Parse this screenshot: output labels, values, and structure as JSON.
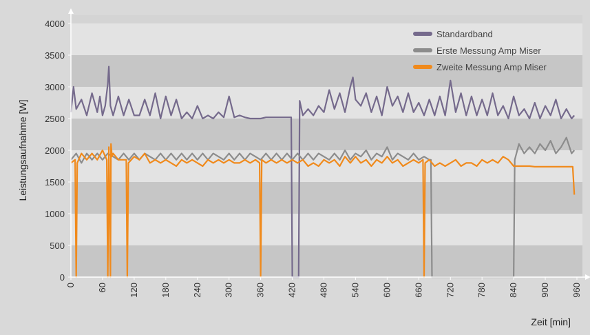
{
  "chart_data": {
    "type": "line",
    "title": "",
    "xlabel": "Zeit [min]",
    "ylabel": "Leistungsaufnahme [W]",
    "xlim": [
      0,
      960
    ],
    "ylim": [
      0,
      4000
    ],
    "x_ticks": [
      0,
      60,
      120,
      180,
      240,
      300,
      360,
      420,
      480,
      540,
      600,
      660,
      720,
      780,
      840,
      900,
      960
    ],
    "y_ticks": [
      0,
      500,
      1000,
      1500,
      2000,
      2500,
      3000,
      3500,
      4000
    ],
    "grid": "horizontal alternating bands",
    "legend_position": "top-right",
    "series": [
      {
        "name": "Standardband",
        "color": "#756a8c",
        "x": [
          0,
          5,
          10,
          20,
          30,
          40,
          50,
          55,
          60,
          65,
          70,
          72,
          75,
          80,
          90,
          100,
          110,
          120,
          130,
          140,
          150,
          160,
          170,
          180,
          190,
          200,
          210,
          220,
          230,
          240,
          250,
          260,
          270,
          280,
          290,
          300,
          310,
          320,
          330,
          340,
          350,
          360,
          370,
          380,
          390,
          400,
          410,
          418,
          420,
          432,
          434,
          440,
          450,
          460,
          470,
          480,
          490,
          500,
          510,
          520,
          530,
          535,
          540,
          550,
          560,
          570,
          580,
          590,
          600,
          610,
          620,
          630,
          640,
          650,
          660,
          670,
          680,
          690,
          700,
          710,
          720,
          730,
          740,
          750,
          760,
          770,
          780,
          790,
          800,
          810,
          820,
          830,
          840,
          850,
          860,
          870,
          880,
          890,
          900,
          910,
          920,
          930,
          940,
          950,
          955
        ],
        "values": [
          2600,
          3000,
          2650,
          2800,
          2550,
          2900,
          2600,
          2850,
          2550,
          2700,
          3050,
          3320,
          2700,
          2550,
          2850,
          2550,
          2800,
          2550,
          2550,
          2800,
          2550,
          2900,
          2500,
          2850,
          2550,
          2800,
          2500,
          2600,
          2500,
          2700,
          2500,
          2550,
          2500,
          2600,
          2520,
          2850,
          2520,
          2550,
          2520,
          2500,
          2500,
          2500,
          2520,
          2520,
          2520,
          2520,
          2520,
          2520,
          0,
          0,
          2780,
          2550,
          2650,
          2550,
          2700,
          2600,
          2950,
          2650,
          2900,
          2600,
          3000,
          3150,
          2800,
          2700,
          2900,
          2600,
          2850,
          2550,
          3000,
          2700,
          2850,
          2600,
          2900,
          2600,
          2750,
          2550,
          2800,
          2550,
          2850,
          2550,
          3100,
          2600,
          2900,
          2550,
          2850,
          2550,
          2800,
          2550,
          2900,
          2550,
          2700,
          2500,
          2850,
          2550,
          2650,
          2500,
          2750,
          2500,
          2700,
          2550,
          2800,
          2500,
          2650,
          2500,
          2550
        ]
      },
      {
        "name": "Erste Messung Amp Miser",
        "color": "#8c8c8c",
        "x": [
          0,
          10,
          20,
          30,
          40,
          50,
          60,
          70,
          80,
          90,
          100,
          110,
          120,
          130,
          140,
          150,
          160,
          170,
          180,
          190,
          200,
          210,
          220,
          230,
          240,
          250,
          260,
          270,
          280,
          290,
          300,
          310,
          320,
          330,
          340,
          350,
          360,
          370,
          380,
          390,
          400,
          410,
          420,
          430,
          440,
          450,
          460,
          470,
          480,
          490,
          500,
          510,
          520,
          530,
          540,
          550,
          560,
          570,
          580,
          590,
          600,
          610,
          620,
          630,
          640,
          650,
          660,
          670,
          680,
          683,
          685,
          840,
          842,
          850,
          860,
          870,
          880,
          890,
          900,
          910,
          920,
          930,
          940,
          950,
          955
        ],
        "values": [
          1850,
          1950,
          1800,
          1950,
          1850,
          1950,
          1850,
          1950,
          1900,
          1850,
          1950,
          1850,
          1950,
          1850,
          1950,
          1900,
          1850,
          1950,
          1850,
          1950,
          1850,
          1950,
          1850,
          1950,
          1850,
          1950,
          1850,
          1950,
          1900,
          1850,
          1950,
          1850,
          1950,
          1850,
          1950,
          1900,
          1850,
          1950,
          1850,
          1950,
          1850,
          1950,
          1850,
          1950,
          1850,
          1950,
          1850,
          1950,
          1900,
          1850,
          1950,
          1850,
          2000,
          1850,
          1950,
          1900,
          2000,
          1850,
          1950,
          1900,
          2050,
          1850,
          1950,
          1900,
          1850,
          1950,
          1850,
          1900,
          1850,
          1850,
          0,
          0,
          1850,
          2100,
          1950,
          2050,
          1950,
          2100,
          2000,
          2150,
          1950,
          2050,
          2200,
          1950,
          2000
        ]
      },
      {
        "name": "Zweite Messung Amp Miser",
        "color": "#f08a1c",
        "x": [
          0,
          8,
          10,
          12,
          20,
          30,
          40,
          50,
          60,
          68,
          70,
          72,
          75,
          76,
          78,
          80,
          90,
          105,
          107,
          109,
          120,
          130,
          140,
          150,
          160,
          170,
          180,
          190,
          200,
          210,
          220,
          230,
          240,
          250,
          260,
          270,
          280,
          290,
          300,
          310,
          320,
          330,
          340,
          350,
          358,
          360,
          362,
          370,
          380,
          390,
          400,
          410,
          420,
          430,
          440,
          450,
          460,
          470,
          480,
          490,
          500,
          510,
          520,
          530,
          540,
          550,
          560,
          570,
          580,
          590,
          600,
          610,
          620,
          630,
          640,
          650,
          660,
          668,
          670,
          672,
          680,
          690,
          700,
          710,
          720,
          730,
          740,
          750,
          760,
          770,
          780,
          790,
          800,
          810,
          820,
          830,
          840,
          850,
          860,
          870,
          880,
          890,
          900,
          910,
          920,
          930,
          940,
          950,
          952,
          955
        ],
        "values": [
          1800,
          1850,
          0,
          1800,
          1950,
          1850,
          1950,
          1850,
          2000,
          1850,
          0,
          2050,
          0,
          2100,
          1900,
          1950,
          1850,
          1850,
          0,
          1800,
          1900,
          1850,
          1950,
          1800,
          1850,
          1800,
          1850,
          1800,
          1750,
          1850,
          1800,
          1850,
          1800,
          1750,
          1850,
          1800,
          1850,
          1800,
          1850,
          1800,
          1800,
          1850,
          1800,
          1850,
          1800,
          0,
          1850,
          1800,
          1850,
          1800,
          1850,
          1800,
          1850,
          1800,
          1850,
          1750,
          1800,
          1750,
          1850,
          1800,
          1850,
          1750,
          1900,
          1800,
          1900,
          1800,
          1850,
          1750,
          1850,
          1800,
          1900,
          1800,
          1850,
          1750,
          1800,
          1850,
          1800,
          1850,
          0,
          1800,
          1850,
          1750,
          1800,
          1750,
          1800,
          1850,
          1750,
          1800,
          1800,
          1750,
          1850,
          1800,
          1850,
          1800,
          1900,
          1850,
          1750,
          1750,
          1750,
          1750,
          1740,
          1740,
          1740,
          1740,
          1740,
          1740,
          1740,
          1740,
          1740,
          1300
        ]
      }
    ]
  }
}
